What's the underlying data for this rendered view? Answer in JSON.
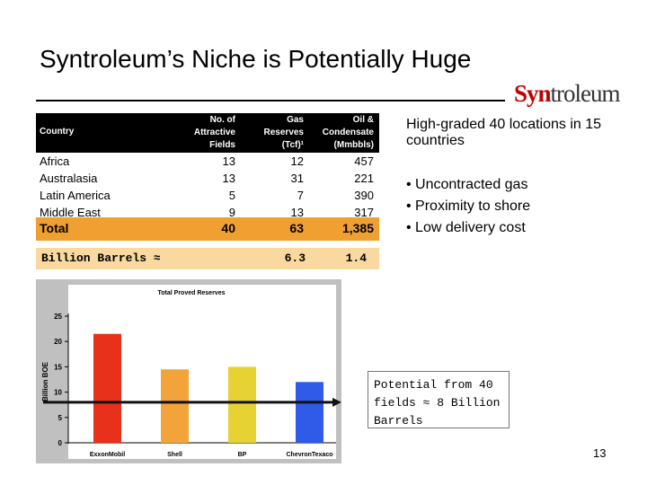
{
  "slide": {
    "title": "Syntroleum’s Niche is Potentially Huge",
    "logo_prefix": "Syn",
    "logo_suffix": "troleum",
    "page_number": "13"
  },
  "table": {
    "headers": {
      "country": "Country",
      "fields": [
        "No. of",
        "Attractive",
        "Fields"
      ],
      "gas": [
        "Gas",
        "Reserves",
        "(Tcf)¹"
      ],
      "oil": [
        "Oil &",
        "Condensate",
        "(Mmbbls)"
      ]
    },
    "rows": [
      {
        "country": "Africa",
        "fields": "13",
        "gas": "12",
        "oil": "457"
      },
      {
        "country": "Australasia",
        "fields": "13",
        "gas": "31",
        "oil": "221"
      },
      {
        "country": "Latin America",
        "fields": "5",
        "gas": "7",
        "oil": "390"
      },
      {
        "country": "Middle East",
        "fields": "9",
        "gas": "13",
        "oil": "317"
      }
    ],
    "total": {
      "label": "Total",
      "fields": "40",
      "gas": "63",
      "oil": "1,385"
    },
    "billion_barrels": {
      "label": "Billion Barrels ≈",
      "gas": "6.3",
      "oil": "1.4"
    },
    "colors": {
      "header_bg": "#000000",
      "total_bg": "#f0a030",
      "billion_bg": "#fad9a0"
    }
  },
  "bullets": {
    "heading": "High-graded 40 locations in 15 countries",
    "items": [
      "• Uncontracted gas",
      "• Proximity to shore",
      "• Low delivery cost"
    ]
  },
  "callout": {
    "text": "Potential from 40 fields ≈ 8 Billion Barrels"
  },
  "chart_data": {
    "type": "bar",
    "title": "Total Proved Reserves",
    "ylabel": "Billion BOE",
    "categories": [
      "ExxonMobil",
      "Shell",
      "BP",
      "ChevronTexaco"
    ],
    "values": [
      21.5,
      14.5,
      15,
      12
    ],
    "colors": [
      "#e8311a",
      "#f2a33a",
      "#e6d233",
      "#2f5be8"
    ],
    "ylim": [
      0,
      25
    ],
    "yticks": [
      "0",
      "5",
      "10",
      "15",
      "20",
      "25"
    ],
    "reference_line": 8,
    "grid": false,
    "background": "#c0c0c0",
    "plot_background": "#ffffff"
  }
}
